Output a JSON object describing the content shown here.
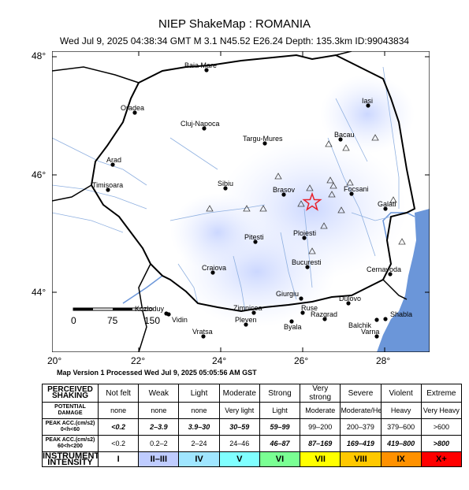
{
  "title": "NIEP ShakeMap : ROMANIA",
  "subtitle": "Wed Jul  9, 2025 04:38:34 GMT   M 3.1   N45.52 E26.24   Depth: 135.3km   ID:99043834",
  "processed": "Map Version 1 Processed Wed Jul  9, 2025 05:05:56 AM GST",
  "axes": {
    "lat_labels": [
      "48°",
      "46°",
      "44°"
    ],
    "lon_labels": [
      "20°",
      "22°",
      "24°",
      "26°",
      "28°"
    ]
  },
  "scale_bar": [
    "0",
    "75",
    "150"
  ],
  "cities": [
    "Baia Mare",
    "Oradea",
    "Cluj-Napoca",
    "Iasi",
    "Targu-Mures",
    "Bacau",
    "Arad",
    "Timisoara",
    "Sibiu",
    "Brasov",
    "Focsani",
    "Galati",
    "Pitesti",
    "Ploiesti",
    "Craiova",
    "Bucuresti",
    "Cernavoda",
    "Giurgiu",
    "Zimnicea",
    "Dulovo",
    "Ruse",
    "Kozloduy",
    "Vidin",
    "Pleven",
    "Byala",
    "Razgrad",
    "Balchik",
    "Shabla",
    "Vratsa",
    "Varna"
  ],
  "legend": {
    "perceived_label": "PERCEIVED SHAKING",
    "damage_label": "POTENTIAL DAMAGE",
    "acc1_label": "PEAK ACC.(cm/s2) 0<h<60",
    "acc2_label": "PEAK ACC.(cm/s2) 60<h<200",
    "intensity_label": "INSTRUMENTAL INTENSITY",
    "columns": [
      {
        "shaking": "Not felt",
        "damage": "none",
        "acc1": "<0.2",
        "acc2": "<0.2",
        "intensity": "I",
        "color": "#ffffff"
      },
      {
        "shaking": "Weak",
        "damage": "none",
        "acc1": "2–3.9",
        "acc2": "0.2–2",
        "intensity": "II–III",
        "color": "#bfccff"
      },
      {
        "shaking": "Light",
        "damage": "none",
        "acc1": "3.9–30",
        "acc2": "2–24",
        "intensity": "IV",
        "color": "#a0e6ff"
      },
      {
        "shaking": "Moderate",
        "damage": "Very light",
        "acc1": "30–59",
        "acc2": "24–46",
        "intensity": "V",
        "color": "#80ffff"
      },
      {
        "shaking": "Strong",
        "damage": "Light",
        "acc1": "59–99",
        "acc2": "46–87",
        "intensity": "VI",
        "color": "#7aff93"
      },
      {
        "shaking": "Very strong",
        "damage": "Moderate",
        "acc1": "99–200",
        "acc2": "87–169",
        "intensity": "VII",
        "color": "#ffff00"
      },
      {
        "shaking": "Severe",
        "damage": "Moderate/Heavy",
        "acc1": "200–379",
        "acc2": "169–419",
        "intensity": "VIII",
        "color": "#ffc800"
      },
      {
        "shaking": "Violent",
        "damage": "Heavy",
        "acc1": "379–600",
        "acc2": "419–800",
        "intensity": "IX",
        "color": "#ff9100"
      },
      {
        "shaking": "Extreme",
        "damage": "Very Heavy",
        "acc1": ">600",
        "acc2": ">800",
        "intensity": "X+",
        "color": "#ff0000"
      }
    ]
  }
}
